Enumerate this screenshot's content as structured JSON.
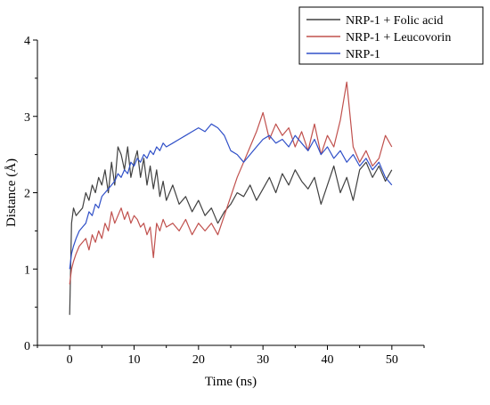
{
  "chart_data": {
    "type": "line",
    "title": "",
    "xlabel": "Time (ns)",
    "ylabel": "Distance (Å)",
    "xlim": [
      -5,
      55
    ],
    "ylim": [
      0,
      4
    ],
    "xticks": [
      0,
      10,
      20,
      30,
      40,
      50
    ],
    "yticks": [
      0,
      1,
      2,
      3,
      4
    ],
    "grid": false,
    "legend_position": "top-right",
    "series": [
      {
        "name": "NRP-1 + Folic acid",
        "color": "#404040",
        "x": [
          0,
          0.3,
          0.6,
          1,
          1.5,
          2,
          2.5,
          3,
          3.5,
          4,
          4.5,
          5,
          5.5,
          6,
          6.5,
          7,
          7.5,
          8,
          8.5,
          9,
          9.5,
          10,
          10.5,
          11,
          11.5,
          12,
          12.5,
          13,
          13.5,
          14,
          14.5,
          15,
          16,
          17,
          18,
          19,
          20,
          21,
          22,
          23,
          24,
          25,
          26,
          27,
          28,
          29,
          30,
          31,
          32,
          33,
          34,
          35,
          36,
          37,
          38,
          39,
          40,
          41,
          42,
          43,
          44,
          45,
          46,
          47,
          48,
          49,
          50
        ],
        "y": [
          0.4,
          1.6,
          1.8,
          1.7,
          1.75,
          1.8,
          2.0,
          1.9,
          2.1,
          2.0,
          2.2,
          2.1,
          2.3,
          2.0,
          2.4,
          2.1,
          2.6,
          2.5,
          2.3,
          2.6,
          2.2,
          2.4,
          2.55,
          2.2,
          2.45,
          2.1,
          2.35,
          2.05,
          2.3,
          1.95,
          2.15,
          1.9,
          2.1,
          1.85,
          1.95,
          1.75,
          1.9,
          1.7,
          1.8,
          1.6,
          1.75,
          1.85,
          2.0,
          1.95,
          2.1,
          1.9,
          2.05,
          2.2,
          2.0,
          2.25,
          2.1,
          2.3,
          2.15,
          2.05,
          2.2,
          1.85,
          2.1,
          2.35,
          2.0,
          2.2,
          1.9,
          2.3,
          2.4,
          2.2,
          2.35,
          2.15,
          2.3
        ]
      },
      {
        "name": "NRP-1 + Leucovorin",
        "color": "#c0504d",
        "x": [
          0,
          0.3,
          0.6,
          1,
          1.5,
          2,
          2.5,
          3,
          3.5,
          4,
          4.5,
          5,
          5.5,
          6,
          6.5,
          7,
          7.5,
          8,
          8.5,
          9,
          9.5,
          10,
          10.5,
          11,
          11.5,
          12,
          12.5,
          13,
          13.5,
          14,
          14.5,
          15,
          16,
          17,
          18,
          19,
          20,
          21,
          22,
          23,
          24,
          25,
          26,
          27,
          28,
          29,
          30,
          31,
          32,
          33,
          34,
          35,
          36,
          37,
          38,
          39,
          40,
          41,
          42,
          43,
          44,
          45,
          46,
          47,
          48,
          49,
          50
        ],
        "y": [
          0.8,
          1.0,
          1.1,
          1.2,
          1.3,
          1.35,
          1.4,
          1.25,
          1.45,
          1.35,
          1.5,
          1.4,
          1.6,
          1.5,
          1.75,
          1.6,
          1.7,
          1.8,
          1.65,
          1.75,
          1.6,
          1.7,
          1.65,
          1.55,
          1.6,
          1.45,
          1.55,
          1.15,
          1.6,
          1.5,
          1.65,
          1.55,
          1.6,
          1.5,
          1.65,
          1.45,
          1.6,
          1.5,
          1.6,
          1.45,
          1.7,
          1.95,
          2.2,
          2.4,
          2.6,
          2.8,
          3.05,
          2.7,
          2.9,
          2.75,
          2.85,
          2.6,
          2.8,
          2.55,
          2.9,
          2.5,
          2.75,
          2.6,
          2.95,
          3.45,
          2.6,
          2.4,
          2.55,
          2.35,
          2.45,
          2.75,
          2.6
        ]
      },
      {
        "name": "NRP-1",
        "color": "#3050c8",
        "x": [
          0,
          0.3,
          0.6,
          1,
          1.5,
          2,
          2.5,
          3,
          3.5,
          4,
          4.5,
          5,
          5.5,
          6,
          6.5,
          7,
          7.5,
          8,
          8.5,
          9,
          9.5,
          10,
          10.5,
          11,
          11.5,
          12,
          12.5,
          13,
          13.5,
          14,
          14.5,
          15,
          16,
          17,
          18,
          19,
          20,
          21,
          22,
          23,
          24,
          25,
          26,
          27,
          28,
          29,
          30,
          31,
          32,
          33,
          34,
          35,
          36,
          37,
          38,
          39,
          40,
          41,
          42,
          43,
          44,
          45,
          46,
          47,
          48,
          49,
          50
        ],
        "y": [
          1.0,
          1.2,
          1.3,
          1.4,
          1.5,
          1.55,
          1.6,
          1.75,
          1.7,
          1.85,
          1.8,
          1.95,
          2.0,
          2.05,
          2.1,
          2.15,
          2.25,
          2.2,
          2.3,
          2.25,
          2.4,
          2.35,
          2.45,
          2.4,
          2.5,
          2.45,
          2.55,
          2.5,
          2.6,
          2.55,
          2.65,
          2.6,
          2.65,
          2.7,
          2.75,
          2.8,
          2.85,
          2.8,
          2.9,
          2.85,
          2.75,
          2.55,
          2.5,
          2.4,
          2.5,
          2.6,
          2.7,
          2.75,
          2.65,
          2.7,
          2.6,
          2.75,
          2.65,
          2.55,
          2.7,
          2.5,
          2.6,
          2.45,
          2.55,
          2.4,
          2.5,
          2.35,
          2.45,
          2.3,
          2.4,
          2.2,
          2.1
        ]
      }
    ]
  }
}
